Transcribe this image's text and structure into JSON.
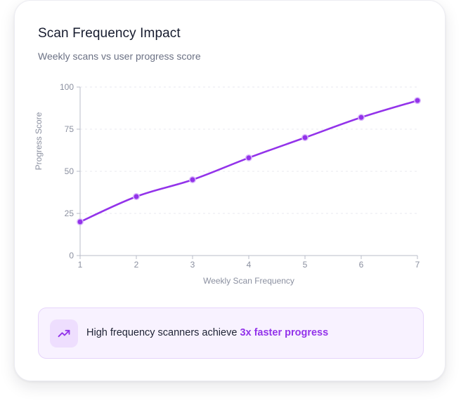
{
  "card": {
    "title": "Scan Frequency Impact",
    "subtitle": "Weekly scans vs user progress score"
  },
  "chart_data": {
    "type": "line",
    "x": [
      1,
      2,
      3,
      4,
      5,
      6,
      7
    ],
    "series": [
      {
        "values": [
          20,
          35,
          45,
          58,
          70,
          82,
          92
        ],
        "color": "#9333ea"
      }
    ],
    "xlabel": "Weekly Scan Frequency",
    "ylabel": "Progress Score",
    "xlim": [
      1,
      7
    ],
    "ylim": [
      0,
      100
    ],
    "yticks": [
      0,
      25,
      50,
      75,
      100
    ],
    "xticks": [
      1,
      2,
      3,
      4,
      5,
      6,
      7
    ],
    "grid": "horizontal-dashed",
    "curve": "smooth"
  },
  "callout": {
    "icon": "trending-up-icon",
    "text_prefix": "High frequency scanners achieve ",
    "text_highlight": "3x faster progress",
    "accent": "#9333ea"
  }
}
